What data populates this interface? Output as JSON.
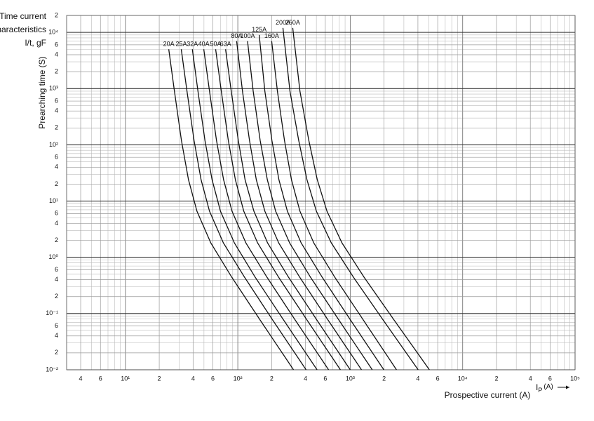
{
  "chart_data": {
    "type": "line",
    "title": [
      "Time current",
      "characteristics",
      "I/t, gF"
    ],
    "y_label": "Prearching time (S)",
    "x_label": "Prospective current (A)",
    "x_unit_symbol": "I",
    "x_unit_subscript": "P",
    "x_unit": "(A)",
    "log_x": true,
    "log_y": true,
    "grid": true,
    "xlim": [
      3,
      100000
    ],
    "ylim": [
      0.01,
      20000
    ],
    "xticks": [
      4,
      6,
      {
        "value": 10,
        "label": "10¹"
      },
      {
        "value": 20,
        "label": "2"
      },
      {
        "value": 40,
        "label": "4"
      },
      {
        "value": 60,
        "label": "6"
      },
      {
        "value": 100,
        "label": "10²"
      },
      {
        "value": 200,
        "label": "2"
      },
      {
        "value": 400,
        "label": "4"
      },
      {
        "value": 600,
        "label": "6"
      },
      {
        "value": 1000,
        "label": "10³"
      },
      {
        "value": 2000,
        "label": "2"
      },
      {
        "value": 4000,
        "label": "4"
      },
      {
        "value": 6000,
        "label": "6"
      },
      {
        "value": 10000,
        "label": "10⁴"
      },
      {
        "value": 20000,
        "label": "2"
      },
      {
        "value": 40000,
        "label": "4"
      },
      {
        "value": 60000,
        "label": "6"
      },
      {
        "value": 100000,
        "label": "10⁵"
      }
    ],
    "yticks": [
      {
        "value": 0.01,
        "label": "10⁻²"
      },
      {
        "value": 0.02,
        "label": "2"
      },
      {
        "value": 0.04,
        "label": "4"
      },
      {
        "value": 0.06,
        "label": "6"
      },
      {
        "value": 0.1,
        "label": "10⁻¹"
      },
      {
        "value": 0.2,
        "label": "2"
      },
      {
        "value": 0.4,
        "label": "4"
      },
      {
        "value": 0.6,
        "label": "6"
      },
      {
        "value": 1,
        "label": "10⁰"
      },
      2,
      4,
      6,
      {
        "value": 10,
        "label": "10¹"
      },
      {
        "value": 20,
        "label": "2"
      },
      {
        "value": 40,
        "label": "4"
      },
      {
        "value": 60,
        "label": "6"
      },
      {
        "value": 100,
        "label": "10²"
      },
      {
        "value": 200,
        "label": "2"
      },
      {
        "value": 400,
        "label": "4"
      },
      {
        "value": 600,
        "label": "6"
      },
      {
        "value": 1000,
        "label": "10³"
      },
      {
        "value": 2000,
        "label": "2"
      },
      {
        "value": 4000,
        "label": "4"
      },
      {
        "value": 6000,
        "label": "6"
      },
      {
        "value": 10000,
        "label": "10⁴"
      },
      {
        "value": 20000,
        "label": "2"
      }
    ],
    "x_minor_ticks": [
      3,
      5,
      7,
      8,
      9,
      30,
      50,
      70,
      80,
      90,
      300,
      500,
      700,
      800,
      900,
      3000,
      5000,
      7000,
      8000,
      9000,
      30000,
      50000,
      70000,
      80000,
      90000
    ],
    "y_minor_ticks": [
      0.03,
      0.05,
      0.07,
      0.08,
      0.09,
      0.3,
      0.5,
      0.7,
      0.8,
      0.9,
      3,
      5,
      7,
      8,
      9,
      30,
      50,
      70,
      80,
      90,
      300,
      500,
      700,
      800,
      900,
      3000,
      5000,
      7000,
      8000,
      9000
    ],
    "series": [
      {
        "name": "20A",
        "color": "#111111",
        "x": [
          24.3,
          27.3,
          31.5,
          36.4,
          43.3,
          57.5,
          88.5,
          157,
          313
        ],
        "values": [
          5000,
          900,
          120,
          24,
          6.6,
          1.8,
          0.44,
          0.078,
          0.01
        ]
      },
      {
        "name": "25A",
        "color": "#111111",
        "x": [
          31.4,
          35.3,
          40.8,
          47.1,
          56.0,
          74.4,
          115,
          203,
          405
        ],
        "values": [
          5000,
          900,
          120,
          24,
          6.6,
          1.8,
          0.44,
          0.078,
          0.01
        ]
      },
      {
        "name": "32A",
        "color": "#111111",
        "x": [
          39.4,
          44.2,
          51.0,
          59.0,
          70.1,
          93.2,
          143,
          254,
          507
        ],
        "values": [
          5000,
          900,
          120,
          24,
          6.6,
          1.8,
          0.44,
          0.078,
          0.01
        ]
      },
      {
        "name": "40A",
        "color": "#111111",
        "x": [
          49.8,
          56.0,
          64.6,
          74.7,
          88.8,
          118,
          182,
          322,
          642
        ],
        "values": [
          5000,
          900,
          120,
          24,
          6.6,
          1.8,
          0.44,
          0.078,
          0.01
        ]
      },
      {
        "name": "50A",
        "color": "#111111",
        "x": [
          63.5,
          71.3,
          82.3,
          95.1,
          113,
          150,
          231,
          410,
          818
        ],
        "values": [
          5000,
          900,
          120,
          24,
          6.6,
          1.8,
          0.44,
          0.078,
          0.01
        ]
      },
      {
        "name": "63A",
        "color": "#111111",
        "x": [
          77.8,
          87.4,
          101,
          116,
          139,
          184,
          283,
          502,
          1000
        ],
        "values": [
          5000,
          900,
          120,
          24,
          6.6,
          1.8,
          0.44,
          0.078,
          0.01
        ]
      },
      {
        "name": "80A",
        "color": "#111111",
        "x": [
          97.6,
          110,
          127,
          146,
          174,
          231,
          356,
          631,
          1260
        ],
        "values": [
          7000,
          900,
          120,
          24,
          6.6,
          1.8,
          0.44,
          0.078,
          0.01
        ]
      },
      {
        "name": "100A",
        "color": "#111111",
        "x": [
          122,
          137,
          158,
          183,
          217,
          289,
          444,
          788,
          1570
        ],
        "values": [
          7000,
          900,
          120,
          24,
          6.6,
          1.8,
          0.44,
          0.078,
          0.01
        ]
      },
      {
        "name": "125A",
        "color": "#111111",
        "x": [
          155,
          174,
          201,
          232,
          276,
          366,
          564,
          1000,
          1990
        ],
        "values": [
          9000,
          900,
          120,
          24,
          6.6,
          1.8,
          0.44,
          0.078,
          0.01
        ]
      },
      {
        "name": "160A",
        "color": "#111111",
        "x": [
          200,
          225,
          260,
          300,
          357,
          474,
          730,
          1300,
          2580
        ],
        "values": [
          7000,
          900,
          120,
          24,
          6.6,
          1.8,
          0.44,
          0.078,
          0.01
        ]
      },
      {
        "name": "200A",
        "color": "#111111",
        "x": [
          252,
          291,
          348,
          412,
          500,
          679,
          1070,
          1950,
          4020
        ],
        "values": [
          12000,
          900,
          120,
          24,
          6.6,
          1.8,
          0.44,
          0.078,
          0.01
        ]
      },
      {
        "name": "250A",
        "color": "#111111",
        "x": [
          308,
          357,
          428,
          509,
          621,
          845,
          1330,
          2440,
          5060
        ],
        "values": [
          12000,
          900,
          120,
          24,
          6.6,
          1.8,
          0.44,
          0.078,
          0.01
        ]
      }
    ]
  }
}
